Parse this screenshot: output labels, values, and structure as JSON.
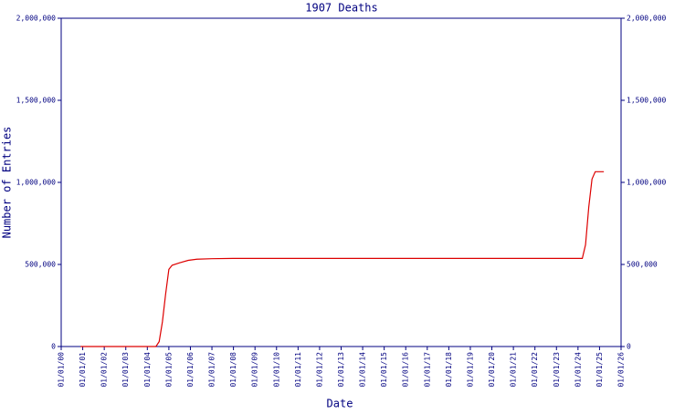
{
  "chart_data": {
    "type": "line",
    "title": "1907 Deaths",
    "x_label": "Date",
    "y_label": "Number of Entries",
    "xlim": [
      0,
      26
    ],
    "xticks": [
      {
        "value": 0,
        "label": "01/01/00"
      },
      {
        "value": 1,
        "label": "01/01/01"
      },
      {
        "value": 2,
        "label": "01/01/02"
      },
      {
        "value": 3,
        "label": "01/01/03"
      },
      {
        "value": 4,
        "label": "01/01/04"
      },
      {
        "value": 5,
        "label": "01/01/05"
      },
      {
        "value": 6,
        "label": "01/01/06"
      },
      {
        "value": 7,
        "label": "01/01/07"
      },
      {
        "value": 8,
        "label": "01/01/08"
      },
      {
        "value": 9,
        "label": "01/01/09"
      },
      {
        "value": 10,
        "label": "01/01/10"
      },
      {
        "value": 11,
        "label": "01/01/11"
      },
      {
        "value": 12,
        "label": "01/01/12"
      },
      {
        "value": 13,
        "label": "01/01/13"
      },
      {
        "value": 14,
        "label": "01/01/14"
      },
      {
        "value": 15,
        "label": "01/01/15"
      },
      {
        "value": 16,
        "label": "01/01/16"
      },
      {
        "value": 17,
        "label": "01/01/17"
      },
      {
        "value": 18,
        "label": "01/01/18"
      },
      {
        "value": 19,
        "label": "01/01/19"
      },
      {
        "value": 20,
        "label": "01/01/20"
      },
      {
        "value": 21,
        "label": "01/01/21"
      },
      {
        "value": 22,
        "label": "01/01/22"
      },
      {
        "value": 23,
        "label": "01/01/23"
      },
      {
        "value": 24,
        "label": "01/01/24"
      },
      {
        "value": 25,
        "label": "01/01/25"
      },
      {
        "value": 26,
        "label": "01/01/26"
      }
    ],
    "ylim": [
      0,
      2000000
    ],
    "yticks": [
      0,
      {
        "value": 500000,
        "label": "500,000"
      },
      {
        "value": 1000000,
        "label": "1,000,000"
      },
      {
        "value": 1500000,
        "label": "1,500,000"
      },
      {
        "value": 2000000,
        "label": "2,000,000"
      }
    ],
    "y2lim": [
      0,
      2000000
    ],
    "y2ticks": [
      0,
      {
        "value": 500000,
        "label": "500,000"
      },
      {
        "value": 1000000,
        "label": "1,000,000"
      },
      {
        "value": 1500000,
        "label": "1,500,000"
      },
      {
        "value": 2000000,
        "label": "2,000,000"
      }
    ],
    "grid": false,
    "axis_color": "#000080",
    "series": [
      {
        "color": "#dd0000",
        "x": [
          0.9,
          4.4,
          4.55,
          4.7,
          4.85,
          5.0,
          5.15,
          5.5,
          5.9,
          6.3,
          7.0,
          8.0,
          24.2,
          24.35,
          24.5,
          24.65,
          24.8,
          25.2
        ],
        "values": [
          0,
          0,
          30000,
          150000,
          320000,
          470000,
          495000,
          510000,
          525000,
          532000,
          535000,
          537000,
          537000,
          620000,
          850000,
          1020000,
          1065000,
          1065000
        ]
      }
    ]
  }
}
